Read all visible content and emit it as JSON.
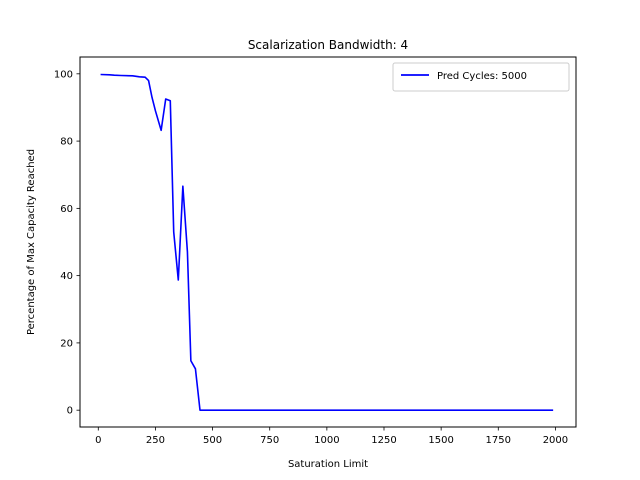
{
  "chart_data": {
    "type": "line",
    "title": "Scalarization Bandwidth: 4",
    "xlabel": "Saturation Limit",
    "ylabel": "Percentage of Max Capacity Reached",
    "xlim": [
      -80,
      2090
    ],
    "ylim": [
      -5,
      105
    ],
    "xticks": [
      0,
      250,
      500,
      750,
      1000,
      1250,
      1500,
      1750,
      2000
    ],
    "yticks": [
      0,
      20,
      40,
      60,
      80,
      100
    ],
    "grid": false,
    "legend_position": "upper-right",
    "series": [
      {
        "name": "Pred Cycles: 5000",
        "color": "#0000ff",
        "x": [
          10,
          50,
          70,
          100,
          150,
          180,
          205,
          220,
          235,
          250,
          275,
          295,
          315,
          330,
          350,
          370,
          390,
          405,
          425,
          445,
          500,
          1000,
          1500,
          1990
        ],
        "y": [
          99.8,
          99.7,
          99.6,
          99.5,
          99.4,
          99.1,
          99.0,
          98.0,
          93.0,
          89.0,
          83.2,
          92.5,
          92.0,
          53.0,
          38.7,
          66.6,
          47.0,
          14.7,
          12.3,
          0,
          0,
          0,
          0,
          0
        ]
      }
    ]
  }
}
